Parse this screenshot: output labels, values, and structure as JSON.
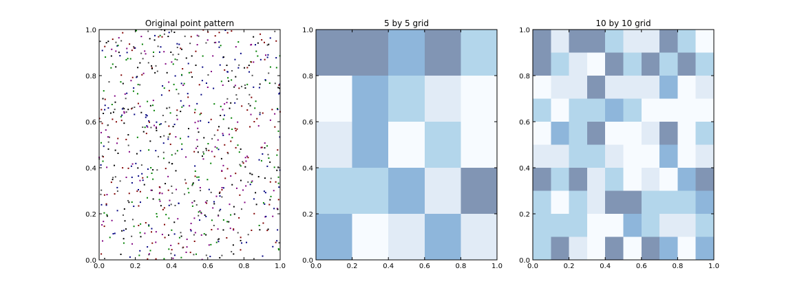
{
  "figure": {
    "background": "#ffffff"
  },
  "colors": {
    "scale": [
      "#f7fbff",
      "#e1ebf6",
      "#b3d6eb",
      "#8eb6db",
      "#8195b4"
    ],
    "point_colors": [
      "#000000",
      "#000080",
      "#008000",
      "#800000",
      "#800080",
      "#4b4b4b"
    ]
  },
  "chart_data": [
    {
      "type": "scatter",
      "title": "Original point pattern",
      "xlabel": "",
      "ylabel": "",
      "xlim": [
        0,
        1
      ],
      "ylim": [
        0,
        1
      ],
      "xticks": [
        "0.0",
        "0.2",
        "0.4",
        "0.6",
        "0.8",
        "1.0"
      ],
      "yticks": [
        "0.0",
        "0.2",
        "0.4",
        "0.6",
        "0.8",
        "1.0"
      ],
      "n_points": 800,
      "point_distribution": "uniform random on the unit square",
      "grid": false
    },
    {
      "type": "heatmap",
      "title": "5 by 5 grid",
      "xlim": [
        0,
        1
      ],
      "ylim": [
        0,
        1
      ],
      "xticks": [
        "0.0",
        "0.2",
        "0.4",
        "0.6",
        "0.8",
        "1.0"
      ],
      "yticks": [
        "0.0",
        "0.2",
        "0.4",
        "0.6",
        "0.8",
        "1.0"
      ],
      "rows_from_top": [
        [
          4,
          4,
          3,
          4,
          2
        ],
        [
          0,
          3,
          2,
          1,
          0
        ],
        [
          1,
          3,
          0,
          2,
          0
        ],
        [
          2,
          2,
          3,
          1,
          4
        ],
        [
          3,
          0,
          1,
          3,
          1
        ]
      ],
      "color_levels": "0 = lightest, 4 = darkest",
      "grid": false
    },
    {
      "type": "heatmap",
      "title": "10 by 10 grid",
      "xlim": [
        0,
        1
      ],
      "ylim": [
        0,
        1
      ],
      "xticks": [
        "0.0",
        "0.2",
        "0.4",
        "0.6",
        "0.8",
        "1.0"
      ],
      "yticks": [
        "0.0",
        "0.2",
        "0.4",
        "0.6",
        "0.8",
        "1.0"
      ],
      "rows_from_top": [
        [
          4,
          1,
          4,
          4,
          2,
          1,
          1,
          4,
          2,
          0
        ],
        [
          4,
          2,
          1,
          0,
          4,
          2,
          4,
          2,
          4,
          2
        ],
        [
          0,
          1,
          1,
          4,
          1,
          1,
          1,
          3,
          0,
          1
        ],
        [
          2,
          0,
          2,
          2,
          3,
          2,
          0,
          0,
          0,
          0
        ],
        [
          0,
          3,
          2,
          4,
          0,
          0,
          1,
          4,
          0,
          2
        ],
        [
          1,
          1,
          2,
          2,
          1,
          0,
          0,
          3,
          0,
          1
        ],
        [
          4,
          2,
          4,
          1,
          2,
          0,
          1,
          0,
          3,
          4
        ],
        [
          2,
          0,
          2,
          1,
          4,
          4,
          2,
          2,
          2,
          3
        ],
        [
          2,
          2,
          2,
          0,
          0,
          3,
          2,
          1,
          1,
          2
        ],
        [
          2,
          4,
          1,
          0,
          4,
          0,
          4,
          3,
          0,
          3
        ]
      ],
      "color_levels": "0 = lightest, 4 = darkest",
      "grid": false
    }
  ]
}
